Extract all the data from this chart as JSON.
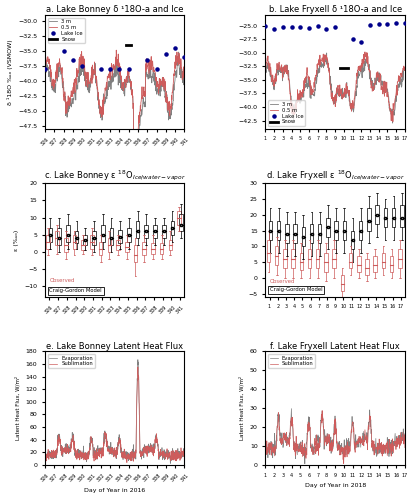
{
  "title_a": "a. Lake Bonney δ ¹18O-a and Ice",
  "title_b": "b. Lake Fryxell δ ¹18O-a and Ice",
  "title_e": "e. Lake Bonney Latent Heat Flux",
  "title_f": "f. Lake Fryxell Latent Heat Flux",
  "xlabel_lb": "Day of Year in 2016",
  "xlabel_lf": "Day of Year in 2018",
  "ylabel_top": "δ ¹18O ‰ₒ (VSMOW)",
  "ylabel_mid": "ε (‰ₒ)",
  "ylabel_bot": "Latent Heat Flux, W/m²",
  "color_3m": "#808080",
  "color_05m": "#cd5c5c",
  "color_ice": "#00008b",
  "color_snow": "#000000",
  "color_obs_box": "#cd5c5c",
  "color_cg_box": "#000000",
  "color_evap": "#808080",
  "color_subl": "#cd5c5c"
}
